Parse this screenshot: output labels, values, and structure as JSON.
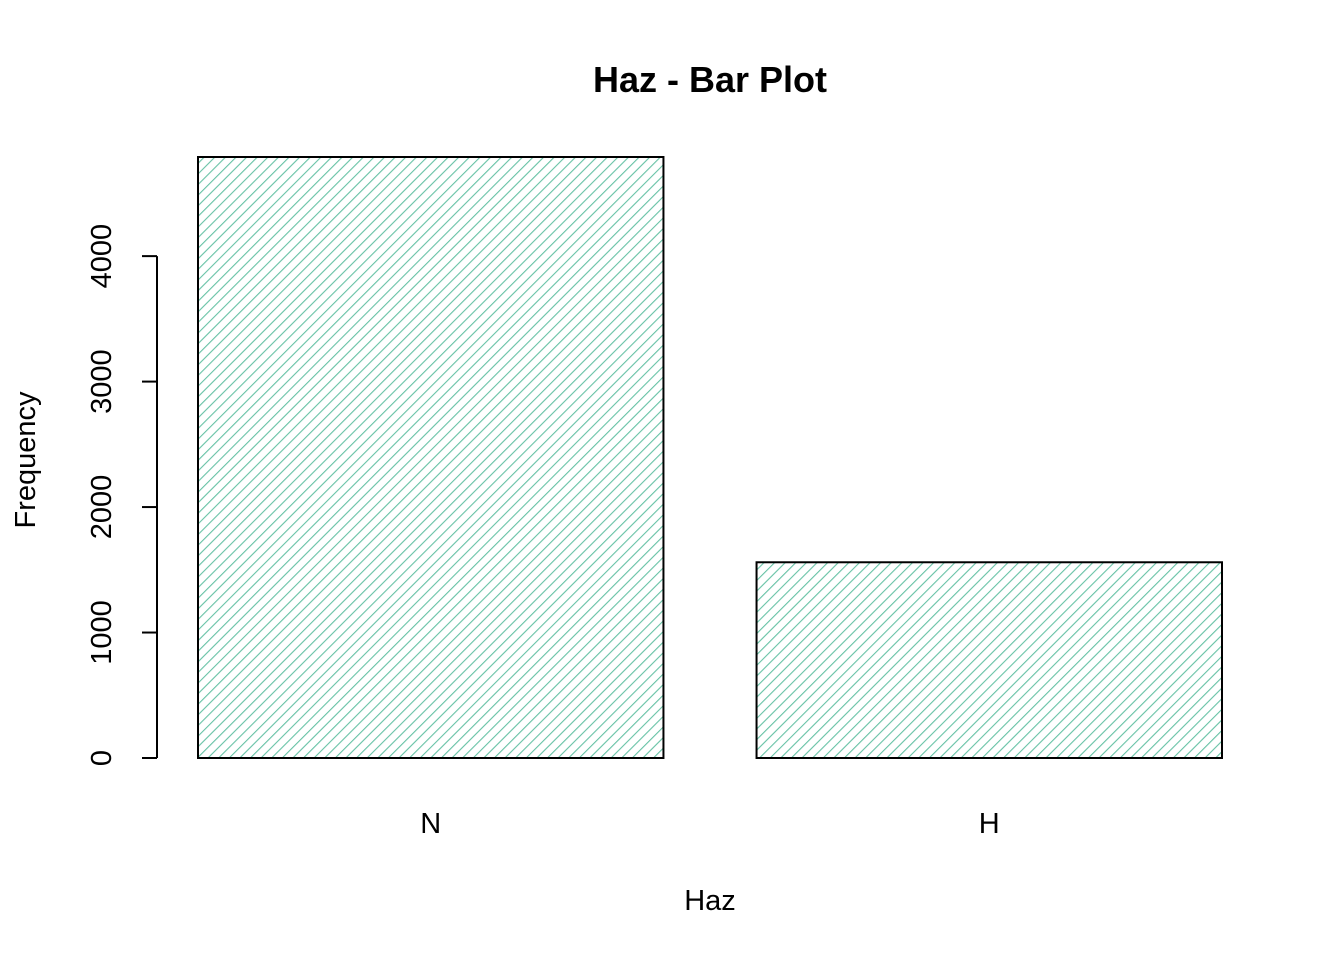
{
  "chart_data": {
    "type": "bar",
    "title": "Haz - Bar Plot",
    "xlabel": "Haz",
    "ylabel": "Frequency",
    "categories": [
      "N",
      "H"
    ],
    "values": [
      4790,
      1560
    ],
    "ylim": [
      0,
      4790
    ],
    "yticks": [
      0,
      1000,
      2000,
      3000,
      4000
    ],
    "ytick_labels": [
      "0",
      "1000",
      "2000",
      "3000",
      "4000"
    ],
    "fill_pattern": "diagonal-hatch",
    "hatch_color": "#66c2a5",
    "border_color": "#000000",
    "grid": false
  }
}
